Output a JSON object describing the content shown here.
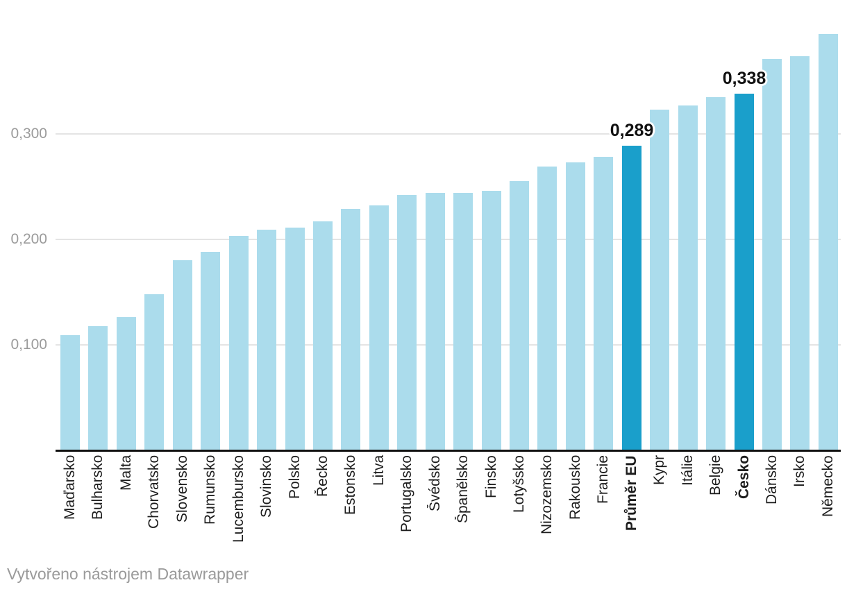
{
  "chart_data": {
    "type": "bar",
    "categories": [
      "Maďarsko",
      "Bulharsko",
      "Malta",
      "Chorvatsko",
      "Slovensko",
      "Rumunsko",
      "Lucembursko",
      "Slovinsko",
      "Polsko",
      "Řecko",
      "Estonsko",
      "Litva",
      "Portugalsko",
      "Švédsko",
      "Španělsko",
      "Finsko",
      "Lotyšsko",
      "Nizozemsko",
      "Rakousko",
      "Francie",
      "Průměr EU",
      "Kypr",
      "Itálie",
      "Belgie",
      "Česko",
      "Dánsko",
      "Irsko",
      "Německo"
    ],
    "values": [
      0.109,
      0.118,
      0.126,
      0.148,
      0.18,
      0.188,
      0.203,
      0.209,
      0.211,
      0.217,
      0.229,
      0.232,
      0.242,
      0.244,
      0.244,
      0.246,
      0.255,
      0.269,
      0.273,
      0.278,
      0.289,
      0.323,
      0.327,
      0.335,
      0.338,
      0.371,
      0.374,
      0.395
    ],
    "highlighted_categories": [
      "Průměr EU",
      "Česko"
    ],
    "annotations": [
      {
        "category": "Průměr EU",
        "text": "0,289"
      },
      {
        "category": "Česko",
        "text": "0,338"
      }
    ],
    "y_axis": {
      "range": [
        0,
        0.42
      ],
      "grid": true,
      "ticks": [
        {
          "value": 0.1,
          "label": "0,100"
        },
        {
          "value": 0.2,
          "label": "0,200"
        },
        {
          "value": 0.3,
          "label": "0,300"
        }
      ]
    },
    "x_axis": {
      "label_rotation": -90
    },
    "colors": {
      "bar": "#abdcec",
      "highlight": "#1a9fcb",
      "gridline": "#e4e4e4",
      "axis": "#111111",
      "tick_text": "#9b9b9b",
      "category_text": "#1d1d1d"
    }
  },
  "footer": {
    "text": "Vytvořeno nástrojem Datawrapper"
  }
}
